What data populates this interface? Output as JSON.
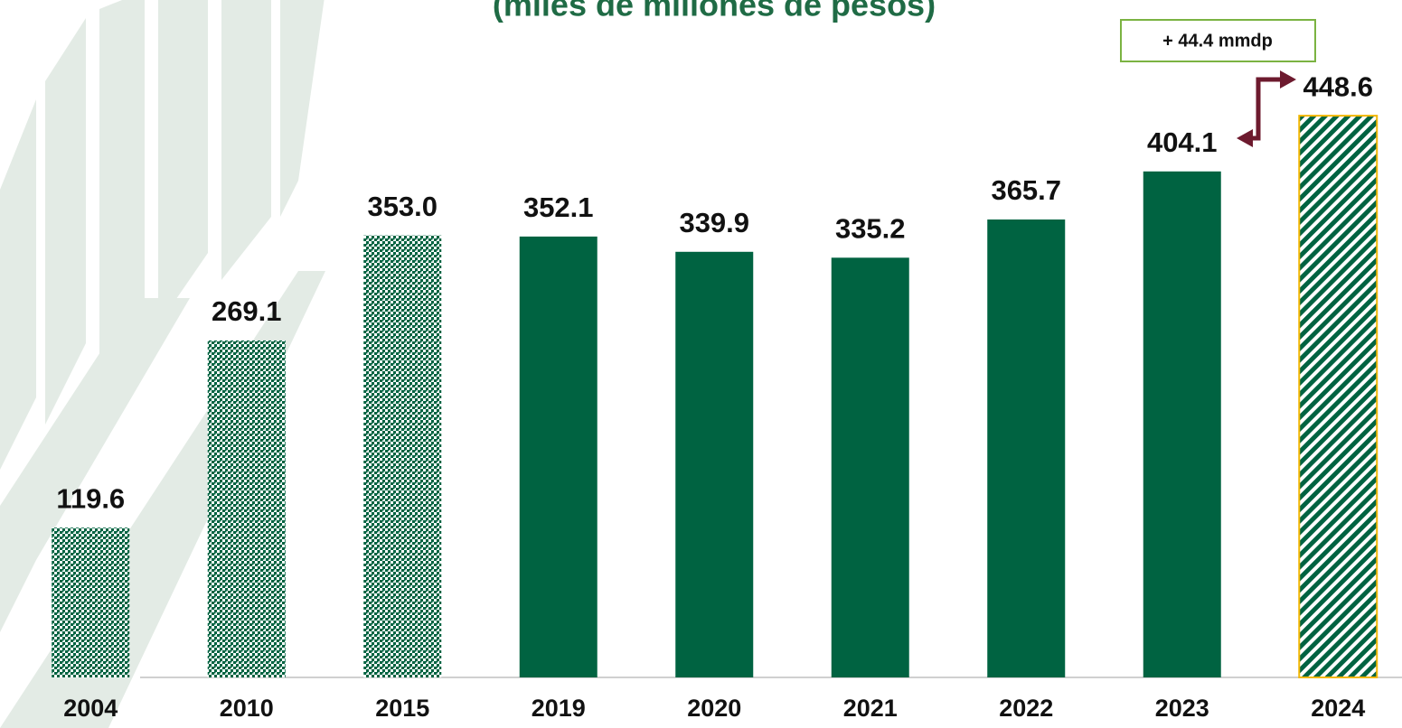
{
  "chart_data": {
    "type": "bar",
    "subtitle": "(miles de millones de pesos)",
    "categories": [
      "2004",
      "2010",
      "2015",
      "2019",
      "2020",
      "2021",
      "2022",
      "2023",
      "2024"
    ],
    "values": [
      119.6,
      269.1,
      353.0,
      352.1,
      339.9,
      335.2,
      365.7,
      404.1,
      448.6
    ],
    "value_labels": [
      "119.6",
      "269.1",
      "353.0",
      "352.1",
      "339.9",
      "335.2",
      "365.7",
      "404.1",
      "448.6"
    ],
    "bar_styles": [
      "dotted",
      "dotted",
      "dotted",
      "solid",
      "solid",
      "solid",
      "solid",
      "solid",
      "hatched"
    ],
    "color": "#006341",
    "ylim": [
      0,
      541
    ],
    "annotation": "+ 44.4 mmdp"
  }
}
